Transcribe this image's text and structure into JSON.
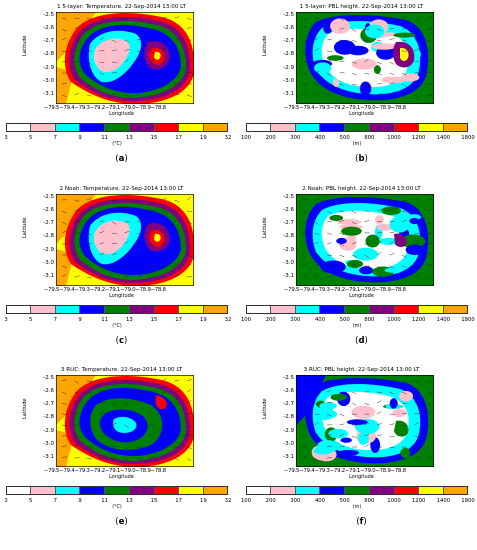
{
  "panels": [
    {
      "title": "1 5-layer: Temperature. 22-Sep-2014 13:00 LT",
      "letter": "a",
      "kind": "temp"
    },
    {
      "title": "1 5-layer: PBL height. 22-Sep-2014 13:00 LT",
      "letter": "b",
      "kind": "pbl"
    },
    {
      "title": "2 Noah: Temperature. 22-Sep-2014 13:00 LT",
      "letter": "c",
      "kind": "temp"
    },
    {
      "title": "2 Noah: PBL height. 22-Sep-2014 13:00 LT",
      "letter": "d",
      "kind": "pbl"
    },
    {
      "title": "3 RUC: Temperature. 22-Sep-2014 13:00 LT",
      "letter": "e",
      "kind": "temp"
    },
    {
      "title": "3 RUC: PBL height. 22-Sep-2014 13:00 LT",
      "letter": "f",
      "kind": "pbl"
    }
  ],
  "axes": {
    "ylabel": "Latitude",
    "xlabel": "Longitude",
    "yticks": [
      "-2.5",
      "-2.6",
      "-2.7",
      "-2.8",
      "-2.9",
      "-3.0",
      "-3.1"
    ],
    "xticks": "−79.5−79.4−79.3−79.2−79.1−79.0−78.9−78.8"
  },
  "temp_scale": {
    "units": "(°C)",
    "ticks": [
      "3",
      "5",
      "7",
      "9",
      "11",
      "13",
      "15",
      "17",
      "19",
      "32"
    ],
    "colors": [
      "#ffffff",
      "#ffc0cb",
      "#00ffff",
      "#0000ff",
      "#008000",
      "#800080",
      "#ff0000",
      "#ffff00",
      "#ffa500"
    ]
  },
  "pbl_scale": {
    "units": "(m)",
    "ticks": [
      "100",
      "200",
      "300",
      "400",
      "500",
      "800",
      "1000",
      "1200",
      "1400",
      "1800"
    ],
    "colors": [
      "#ffffff",
      "#ffc0cb",
      "#00ffff",
      "#0000ff",
      "#008000",
      "#800080",
      "#ff0000",
      "#ffff00",
      "#ffa500"
    ]
  }
}
